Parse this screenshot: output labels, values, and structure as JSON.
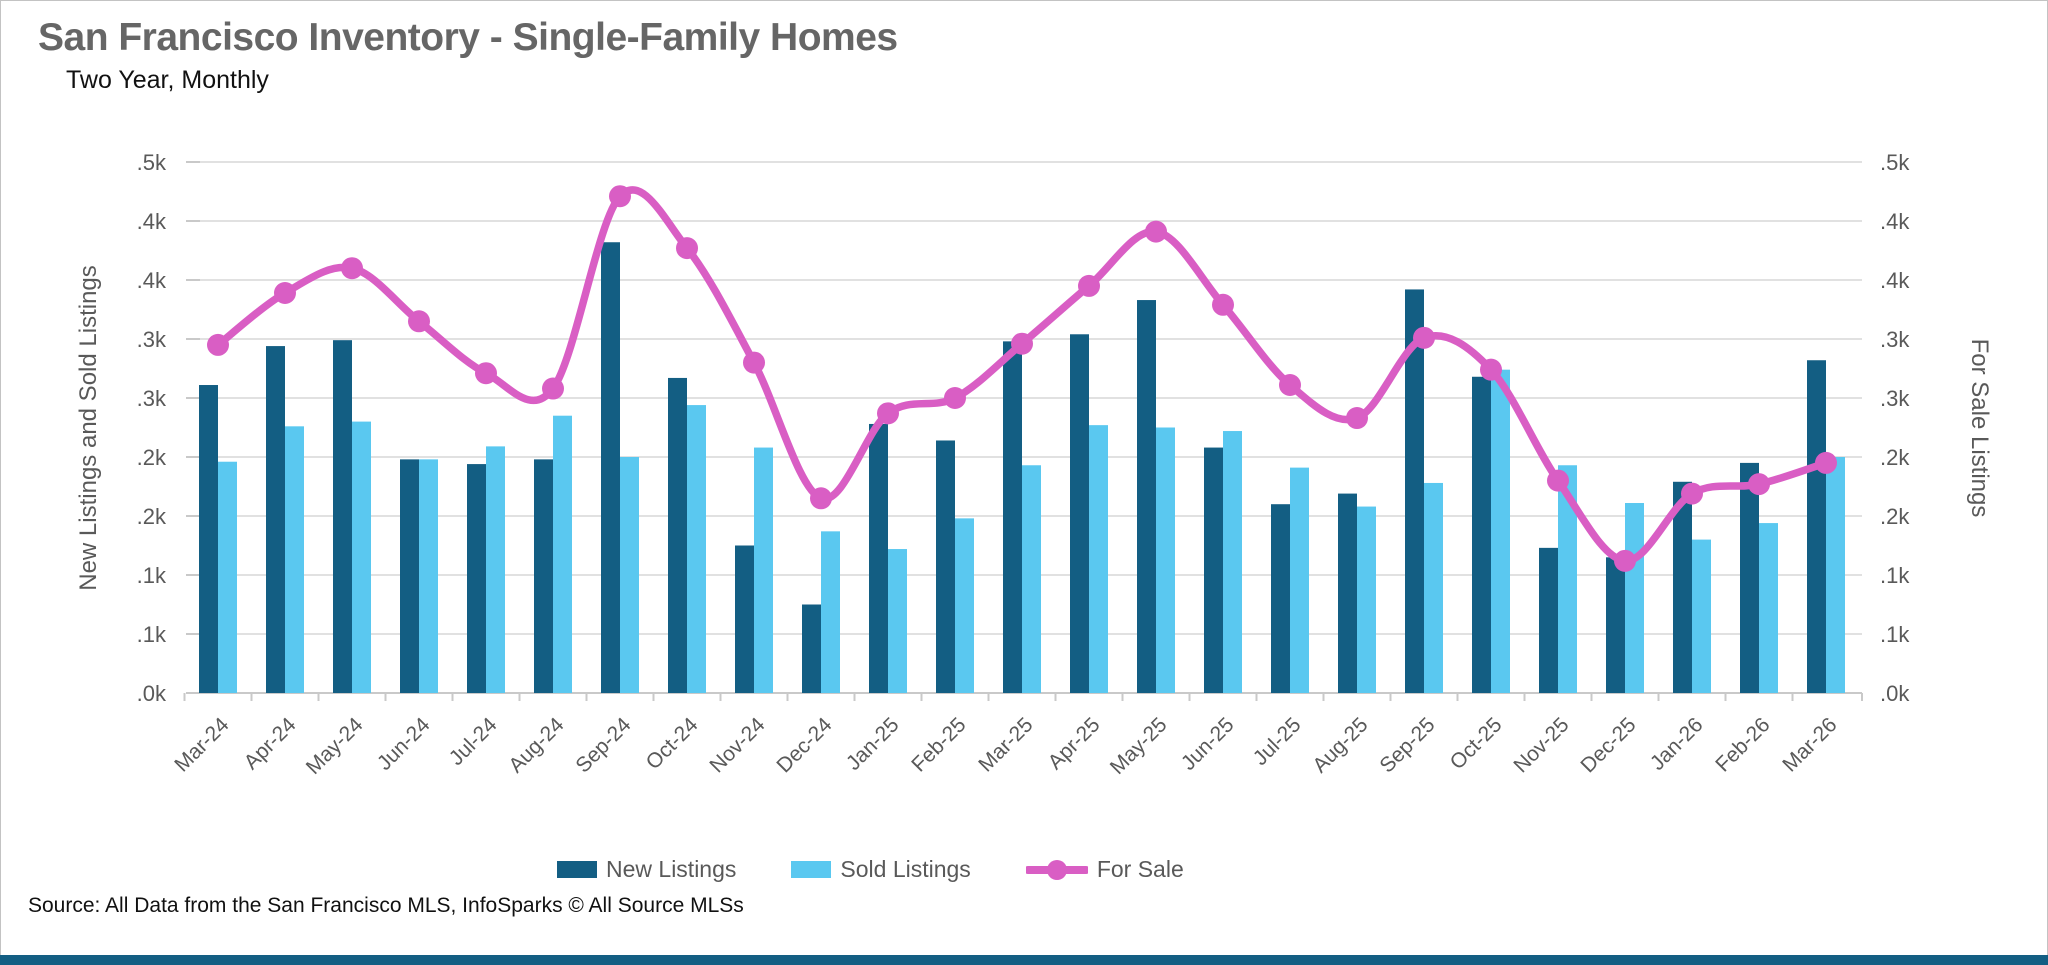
{
  "header": {
    "title": "San Francisco Inventory - Single-Family Homes",
    "subtitle": "Two Year, Monthly"
  },
  "source_line": "Source: All Data from the San Francisco MLS, InfoSparks © All Source MLSs",
  "left_axis": {
    "title": "New Listings and Sold Listings",
    "tick_labels": [
      ".5k",
      ".4k",
      ".4k",
      ".3k",
      ".3k",
      ".2k",
      ".2k",
      ".1k",
      ".1k",
      ".0k"
    ],
    "tick_values": [
      450,
      400,
      350,
      300,
      250,
      200,
      150,
      100,
      50,
      0
    ]
  },
  "right_axis": {
    "title": "For Sale Listings",
    "tick_labels": [
      ".5k",
      ".4k",
      ".4k",
      ".3k",
      ".3k",
      ".2k",
      ".2k",
      ".1k",
      ".1k",
      ".0k"
    ],
    "tick_values": [
      450,
      400,
      350,
      300,
      250,
      200,
      150,
      100,
      50,
      0
    ]
  },
  "legend": {
    "items": [
      {
        "label": "New Listings",
        "swatch": "bar",
        "color": "#135e83"
      },
      {
        "label": "Sold Listings",
        "swatch": "bar",
        "color": "#5ac8f0"
      },
      {
        "label": "For Sale",
        "swatch": "line",
        "color": "#d95ec4"
      }
    ]
  },
  "colors": {
    "new_listings": "#135e83",
    "sold_listings": "#5ac8f0",
    "for_sale": "#d95ec4",
    "gridline": "#e1e1e1",
    "axis_line": "#c9c9c9",
    "tick_text": "#595959",
    "axis_title_text": "#595959",
    "title_text": "#666666",
    "body_text": "#111111",
    "bottom_bar": "#135e83"
  },
  "chart_data": {
    "type": "bar+line",
    "title": "San Francisco Inventory - Single-Family Homes",
    "subtitle": "Two Year, Monthly",
    "categories": [
      "Mar-24",
      "Apr-24",
      "May-24",
      "Jun-24",
      "Jul-24",
      "Aug-24",
      "Sep-24",
      "Oct-24",
      "Nov-24",
      "Dec-24",
      "Jan-25",
      "Feb-25",
      "Mar-25",
      "Apr-25",
      "May-25",
      "Jun-25",
      "Jul-25",
      "Aug-25",
      "Sep-25",
      "Oct-25",
      "Nov-25",
      "Dec-25",
      "Jan-26",
      "Feb-26",
      "Mar-26"
    ],
    "series": [
      {
        "name": "New Listings",
        "type": "bar",
        "axis": "left",
        "color": "#135e83",
        "values": [
          261,
          294,
          299,
          198,
          194,
          198,
          382,
          267,
          125,
          75,
          228,
          214,
          298,
          304,
          333,
          208,
          160,
          169,
          342,
          268,
          123,
          115,
          179,
          195,
          282
        ]
      },
      {
        "name": "Sold Listings",
        "type": "bar",
        "axis": "left",
        "color": "#5ac8f0",
        "values": [
          196,
          226,
          230,
          198,
          209,
          235,
          200,
          244,
          208,
          137,
          122,
          148,
          193,
          227,
          225,
          222,
          191,
          158,
          178,
          274,
          193,
          161,
          130,
          144,
          200
        ]
      },
      {
        "name": "For Sale",
        "type": "line",
        "axis": "right",
        "color": "#d95ec4",
        "values": [
          295,
          339,
          360,
          315,
          271,
          258,
          421,
          377,
          280,
          165,
          237,
          250,
          296,
          345,
          391,
          329,
          261,
          233,
          301,
          274,
          180,
          112,
          169,
          177,
          195
        ]
      }
    ],
    "ylim": [
      0,
      450
    ],
    "grid": true,
    "legend_position": "bottom",
    "ylabel_left": "New Listings and Sold Listings",
    "ylabel_right": "For Sale Listings"
  }
}
